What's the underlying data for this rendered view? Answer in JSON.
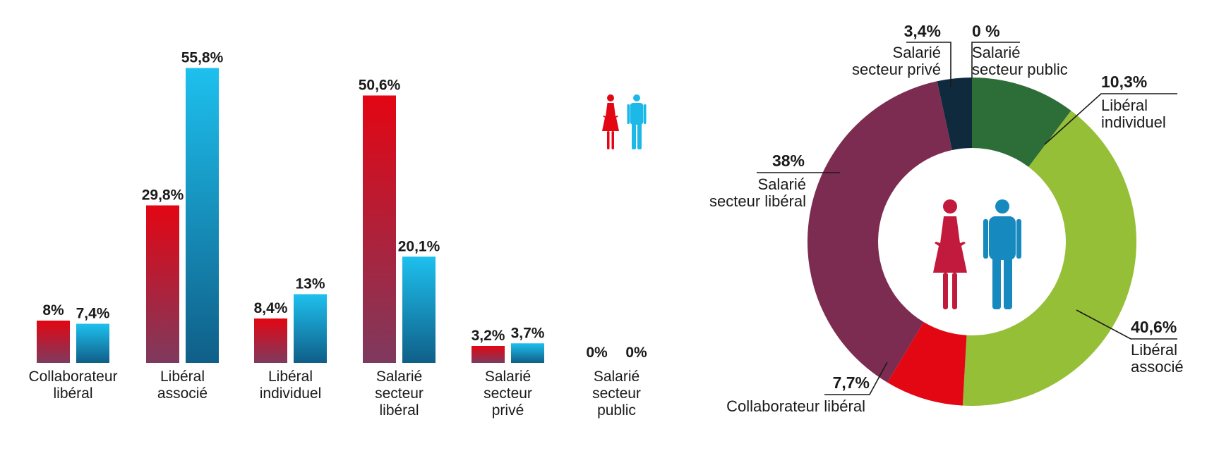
{
  "chart_data": [
    {
      "type": "bar",
      "categories": [
        [
          "Collaborateur",
          "libéral"
        ],
        [
          "Libéral",
          "associé"
        ],
        [
          "Libéral",
          "individuel"
        ],
        [
          "Salarié",
          "secteur",
          "libéral"
        ],
        [
          "Salarié",
          "secteur",
          "privé"
        ],
        [
          "Salarié",
          "secteur",
          "public"
        ]
      ],
      "series": [
        {
          "values": [
            8,
            29.8,
            8.4,
            50.6,
            3.2,
            0
          ],
          "labels": [
            "8%",
            "29,8%",
            "8,4%",
            "50,6%",
            "3,2%",
            "0%"
          ],
          "color": "#e30613"
        },
        {
          "values": [
            7.4,
            55.8,
            13,
            20.1,
            3.7,
            0
          ],
          "labels": [
            "7,4%",
            "55,8%",
            "13%",
            "20,1%",
            "3,7%",
            "0%"
          ],
          "color": "#1cb8e8"
        }
      ],
      "legend_icon": [
        "woman-icon",
        "man-icon"
      ],
      "ylim": [
        0,
        60
      ]
    },
    {
      "type": "pie",
      "slices": [
        {
          "name": [
            "Libéral",
            "individuel"
          ],
          "value": 10.3,
          "label": "10,3%",
          "color": "#2d6e38"
        },
        {
          "name": [
            "Libéral",
            "associé"
          ],
          "value": 40.6,
          "label": "40,6%",
          "color": "#96bf38"
        },
        {
          "name": [
            "Collaborateur",
            "libéral"
          ],
          "value": 7.7,
          "label": "7,7%",
          "color": "#e30613"
        },
        {
          "name": [
            "Salarié",
            "secteur libéral"
          ],
          "value": 38,
          "label": "38%",
          "color": "#7d2c51"
        },
        {
          "name": [
            "Salarié",
            "secteur privé"
          ],
          "value": 3.4,
          "label": "3,4%",
          "color": "#0f2a3d"
        },
        {
          "name": [
            "Salarié",
            "secteur public"
          ],
          "value": 0,
          "label": "0 %",
          "color": "#0f2a3d"
        }
      ],
      "center_icon": [
        "woman-icon",
        "man-icon"
      ]
    }
  ]
}
